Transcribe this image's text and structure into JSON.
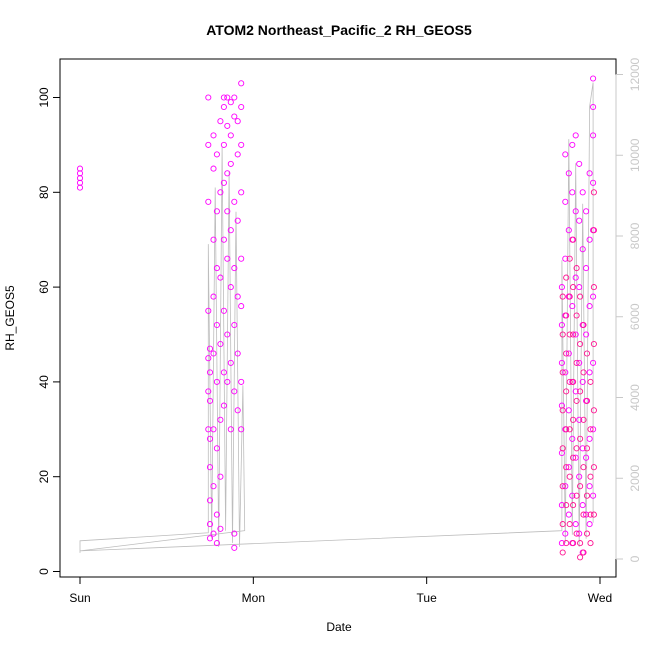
{
  "chart_data": {
    "type": "scatter",
    "title": "ATOM2 Northeast_Pacific_2 RH_GEOS5",
    "xlabel": "Date",
    "ylabel": "RH_GEOS5",
    "x_ticks": [
      "Sun",
      "Mon",
      "Tue",
      "Wed"
    ],
    "xlim": [
      "Sun",
      "Wed"
    ],
    "ylim": [
      0,
      105
    ],
    "y_ticks": [
      0,
      20,
      40,
      60,
      80,
      100
    ],
    "y2lim": [
      0,
      12000
    ],
    "y2_ticks": [
      0,
      2000,
      4000,
      6000,
      8000,
      10000,
      12000
    ],
    "legend": "none",
    "grid": false,
    "series": [
      {
        "color": "#ff00ff",
        "marker": "open-circle",
        "axis": "left",
        "x_unit": "days since Sun",
        "points": [
          [
            0.0,
            81
          ],
          [
            0.0,
            82
          ],
          [
            0.0,
            83
          ],
          [
            0.0,
            84
          ],
          [
            0.0,
            85
          ],
          [
            0.74,
            100
          ],
          [
            0.74,
            90
          ],
          [
            0.74,
            78
          ],
          [
            0.74,
            55
          ],
          [
            0.74,
            45
          ],
          [
            0.74,
            38
          ],
          [
            0.74,
            30
          ],
          [
            0.75,
            47
          ],
          [
            0.75,
            42
          ],
          [
            0.75,
            36
          ],
          [
            0.75,
            28
          ],
          [
            0.75,
            22
          ],
          [
            0.75,
            15
          ],
          [
            0.75,
            10
          ],
          [
            0.75,
            7
          ],
          [
            0.77,
            92
          ],
          [
            0.77,
            85
          ],
          [
            0.77,
            70
          ],
          [
            0.77,
            58
          ],
          [
            0.77,
            46
          ],
          [
            0.77,
            30
          ],
          [
            0.77,
            18
          ],
          [
            0.77,
            8
          ],
          [
            0.79,
            88
          ],
          [
            0.79,
            76
          ],
          [
            0.79,
            64
          ],
          [
            0.79,
            52
          ],
          [
            0.79,
            40
          ],
          [
            0.79,
            26
          ],
          [
            0.79,
            12
          ],
          [
            0.79,
            6
          ],
          [
            0.81,
            95
          ],
          [
            0.81,
            80
          ],
          [
            0.81,
            62
          ],
          [
            0.81,
            48
          ],
          [
            0.81,
            32
          ],
          [
            0.81,
            20
          ],
          [
            0.81,
            9
          ],
          [
            0.83,
            100
          ],
          [
            0.83,
            98
          ],
          [
            0.83,
            90
          ],
          [
            0.83,
            82
          ],
          [
            0.83,
            70
          ],
          [
            0.83,
            55
          ],
          [
            0.83,
            42
          ],
          [
            0.83,
            35
          ],
          [
            0.85,
            100
          ],
          [
            0.85,
            94
          ],
          [
            0.85,
            84
          ],
          [
            0.85,
            76
          ],
          [
            0.85,
            66
          ],
          [
            0.85,
            50
          ],
          [
            0.85,
            40
          ],
          [
            0.87,
            99
          ],
          [
            0.87,
            92
          ],
          [
            0.87,
            86
          ],
          [
            0.87,
            72
          ],
          [
            0.87,
            60
          ],
          [
            0.87,
            44
          ],
          [
            0.87,
            30
          ],
          [
            0.89,
            100
          ],
          [
            0.89,
            96
          ],
          [
            0.89,
            78
          ],
          [
            0.89,
            64
          ],
          [
            0.89,
            52
          ],
          [
            0.89,
            38
          ],
          [
            0.89,
            8
          ],
          [
            0.89,
            5
          ],
          [
            0.91,
            95
          ],
          [
            0.91,
            88
          ],
          [
            0.91,
            74
          ],
          [
            0.91,
            58
          ],
          [
            0.91,
            46
          ],
          [
            0.91,
            34
          ],
          [
            0.93,
            103
          ],
          [
            0.93,
            98
          ],
          [
            0.93,
            90
          ],
          [
            0.93,
            80
          ],
          [
            0.93,
            66
          ],
          [
            0.93,
            56
          ],
          [
            0.93,
            40
          ],
          [
            0.93,
            30
          ],
          [
            2.78,
            60
          ],
          [
            2.78,
            52
          ],
          [
            2.78,
            44
          ],
          [
            2.78,
            35
          ],
          [
            2.78,
            25
          ],
          [
            2.78,
            14
          ],
          [
            2.78,
            6
          ],
          [
            2.8,
            88
          ],
          [
            2.8,
            78
          ],
          [
            2.8,
            66
          ],
          [
            2.8,
            54
          ],
          [
            2.8,
            42
          ],
          [
            2.8,
            30
          ],
          [
            2.8,
            18
          ],
          [
            2.8,
            8
          ],
          [
            2.82,
            84
          ],
          [
            2.82,
            72
          ],
          [
            2.82,
            58
          ],
          [
            2.82,
            46
          ],
          [
            2.82,
            34
          ],
          [
            2.82,
            22
          ],
          [
            2.82,
            12
          ],
          [
            2.84,
            90
          ],
          [
            2.84,
            80
          ],
          [
            2.84,
            70
          ],
          [
            2.84,
            56
          ],
          [
            2.84,
            40
          ],
          [
            2.84,
            28
          ],
          [
            2.84,
            16
          ],
          [
            2.84,
            6
          ],
          [
            2.86,
            92
          ],
          [
            2.86,
            76
          ],
          [
            2.86,
            62
          ],
          [
            2.86,
            50
          ],
          [
            2.86,
            38
          ],
          [
            2.86,
            24
          ],
          [
            2.86,
            10
          ],
          [
            2.88,
            86
          ],
          [
            2.88,
            74
          ],
          [
            2.88,
            60
          ],
          [
            2.88,
            44
          ],
          [
            2.88,
            32
          ],
          [
            2.88,
            20
          ],
          [
            2.88,
            8
          ],
          [
            2.9,
            80
          ],
          [
            2.9,
            68
          ],
          [
            2.9,
            52
          ],
          [
            2.9,
            40
          ],
          [
            2.9,
            26
          ],
          [
            2.9,
            14
          ],
          [
            2.9,
            4
          ],
          [
            2.92,
            76
          ],
          [
            2.92,
            64
          ],
          [
            2.92,
            50
          ],
          [
            2.92,
            36
          ],
          [
            2.92,
            24
          ],
          [
            2.92,
            12
          ],
          [
            2.94,
            84
          ],
          [
            2.94,
            70
          ],
          [
            2.94,
            56
          ],
          [
            2.94,
            42
          ],
          [
            2.94,
            28
          ],
          [
            2.94,
            18
          ],
          [
            2.94,
            10
          ],
          [
            2.96,
            104
          ],
          [
            2.96,
            98
          ],
          [
            2.96,
            92
          ],
          [
            2.96,
            82
          ],
          [
            2.96,
            72
          ],
          [
            2.96,
            58
          ],
          [
            2.96,
            44
          ],
          [
            2.96,
            30
          ],
          [
            2.96,
            16
          ]
        ]
      },
      {
        "color": "#ff1493",
        "marker": "open-circle",
        "axis": "left",
        "x_unit": "days since Sun",
        "points": [
          [
            2.785,
            58
          ],
          [
            2.785,
            50
          ],
          [
            2.785,
            42
          ],
          [
            2.785,
            34
          ],
          [
            2.785,
            26
          ],
          [
            2.785,
            18
          ],
          [
            2.785,
            10
          ],
          [
            2.785,
            4
          ],
          [
            2.805,
            62
          ],
          [
            2.805,
            54
          ],
          [
            2.805,
            46
          ],
          [
            2.805,
            38
          ],
          [
            2.805,
            30
          ],
          [
            2.805,
            22
          ],
          [
            2.805,
            14
          ],
          [
            2.805,
            6
          ],
          [
            2.825,
            66
          ],
          [
            2.825,
            58
          ],
          [
            2.825,
            50
          ],
          [
            2.825,
            40
          ],
          [
            2.825,
            30
          ],
          [
            2.825,
            20
          ],
          [
            2.825,
            10
          ],
          [
            2.845,
            70
          ],
          [
            2.845,
            60
          ],
          [
            2.845,
            50
          ],
          [
            2.845,
            40
          ],
          [
            2.845,
            32
          ],
          [
            2.845,
            24
          ],
          [
            2.845,
            14
          ],
          [
            2.845,
            6
          ],
          [
            2.865,
            64
          ],
          [
            2.865,
            54
          ],
          [
            2.865,
            44
          ],
          [
            2.865,
            36
          ],
          [
            2.865,
            26
          ],
          [
            2.865,
            16
          ],
          [
            2.865,
            8
          ],
          [
            2.885,
            58
          ],
          [
            2.885,
            48
          ],
          [
            2.885,
            38
          ],
          [
            2.885,
            28
          ],
          [
            2.885,
            18
          ],
          [
            2.885,
            6
          ],
          [
            2.885,
            3
          ],
          [
            2.905,
            52
          ],
          [
            2.905,
            42
          ],
          [
            2.905,
            32
          ],
          [
            2.905,
            22
          ],
          [
            2.905,
            12
          ],
          [
            2.905,
            4
          ],
          [
            2.925,
            46
          ],
          [
            2.925,
            36
          ],
          [
            2.925,
            26
          ],
          [
            2.925,
            16
          ],
          [
            2.925,
            8
          ],
          [
            2.945,
            40
          ],
          [
            2.945,
            30
          ],
          [
            2.945,
            20
          ],
          [
            2.945,
            12
          ],
          [
            2.945,
            6
          ],
          [
            2.965,
            80
          ],
          [
            2.965,
            72
          ],
          [
            2.965,
            60
          ],
          [
            2.965,
            48
          ],
          [
            2.965,
            34
          ],
          [
            2.965,
            22
          ],
          [
            2.965,
            12
          ]
        ]
      }
    ],
    "secondary_series": {
      "color": "#bdbdbd",
      "style": "line",
      "axis": "right",
      "x_unit": "days since Sun",
      "points": [
        [
          0.0,
          150
        ],
        [
          0.0,
          450
        ],
        [
          0.74,
          650
        ],
        [
          0.74,
          7800
        ],
        [
          0.76,
          500
        ],
        [
          0.78,
          9200
        ],
        [
          0.8,
          300
        ],
        [
          0.82,
          10200
        ],
        [
          0.84,
          700
        ],
        [
          0.86,
          9600
        ],
        [
          0.88,
          400
        ],
        [
          0.9,
          8600
        ],
        [
          0.92,
          300
        ],
        [
          0.94,
          4300
        ],
        [
          0.95,
          700
        ],
        [
          0.0,
          200
        ],
        [
          2.78,
          700
        ],
        [
          2.78,
          7400
        ],
        [
          2.8,
          400
        ],
        [
          2.82,
          10400
        ],
        [
          2.84,
          600
        ],
        [
          2.86,
          9800
        ],
        [
          2.88,
          300
        ],
        [
          2.9,
          8800
        ],
        [
          2.92,
          500
        ],
        [
          2.94,
          11200
        ],
        [
          2.96,
          11800
        ],
        [
          2.96,
          900
        ]
      ]
    }
  }
}
